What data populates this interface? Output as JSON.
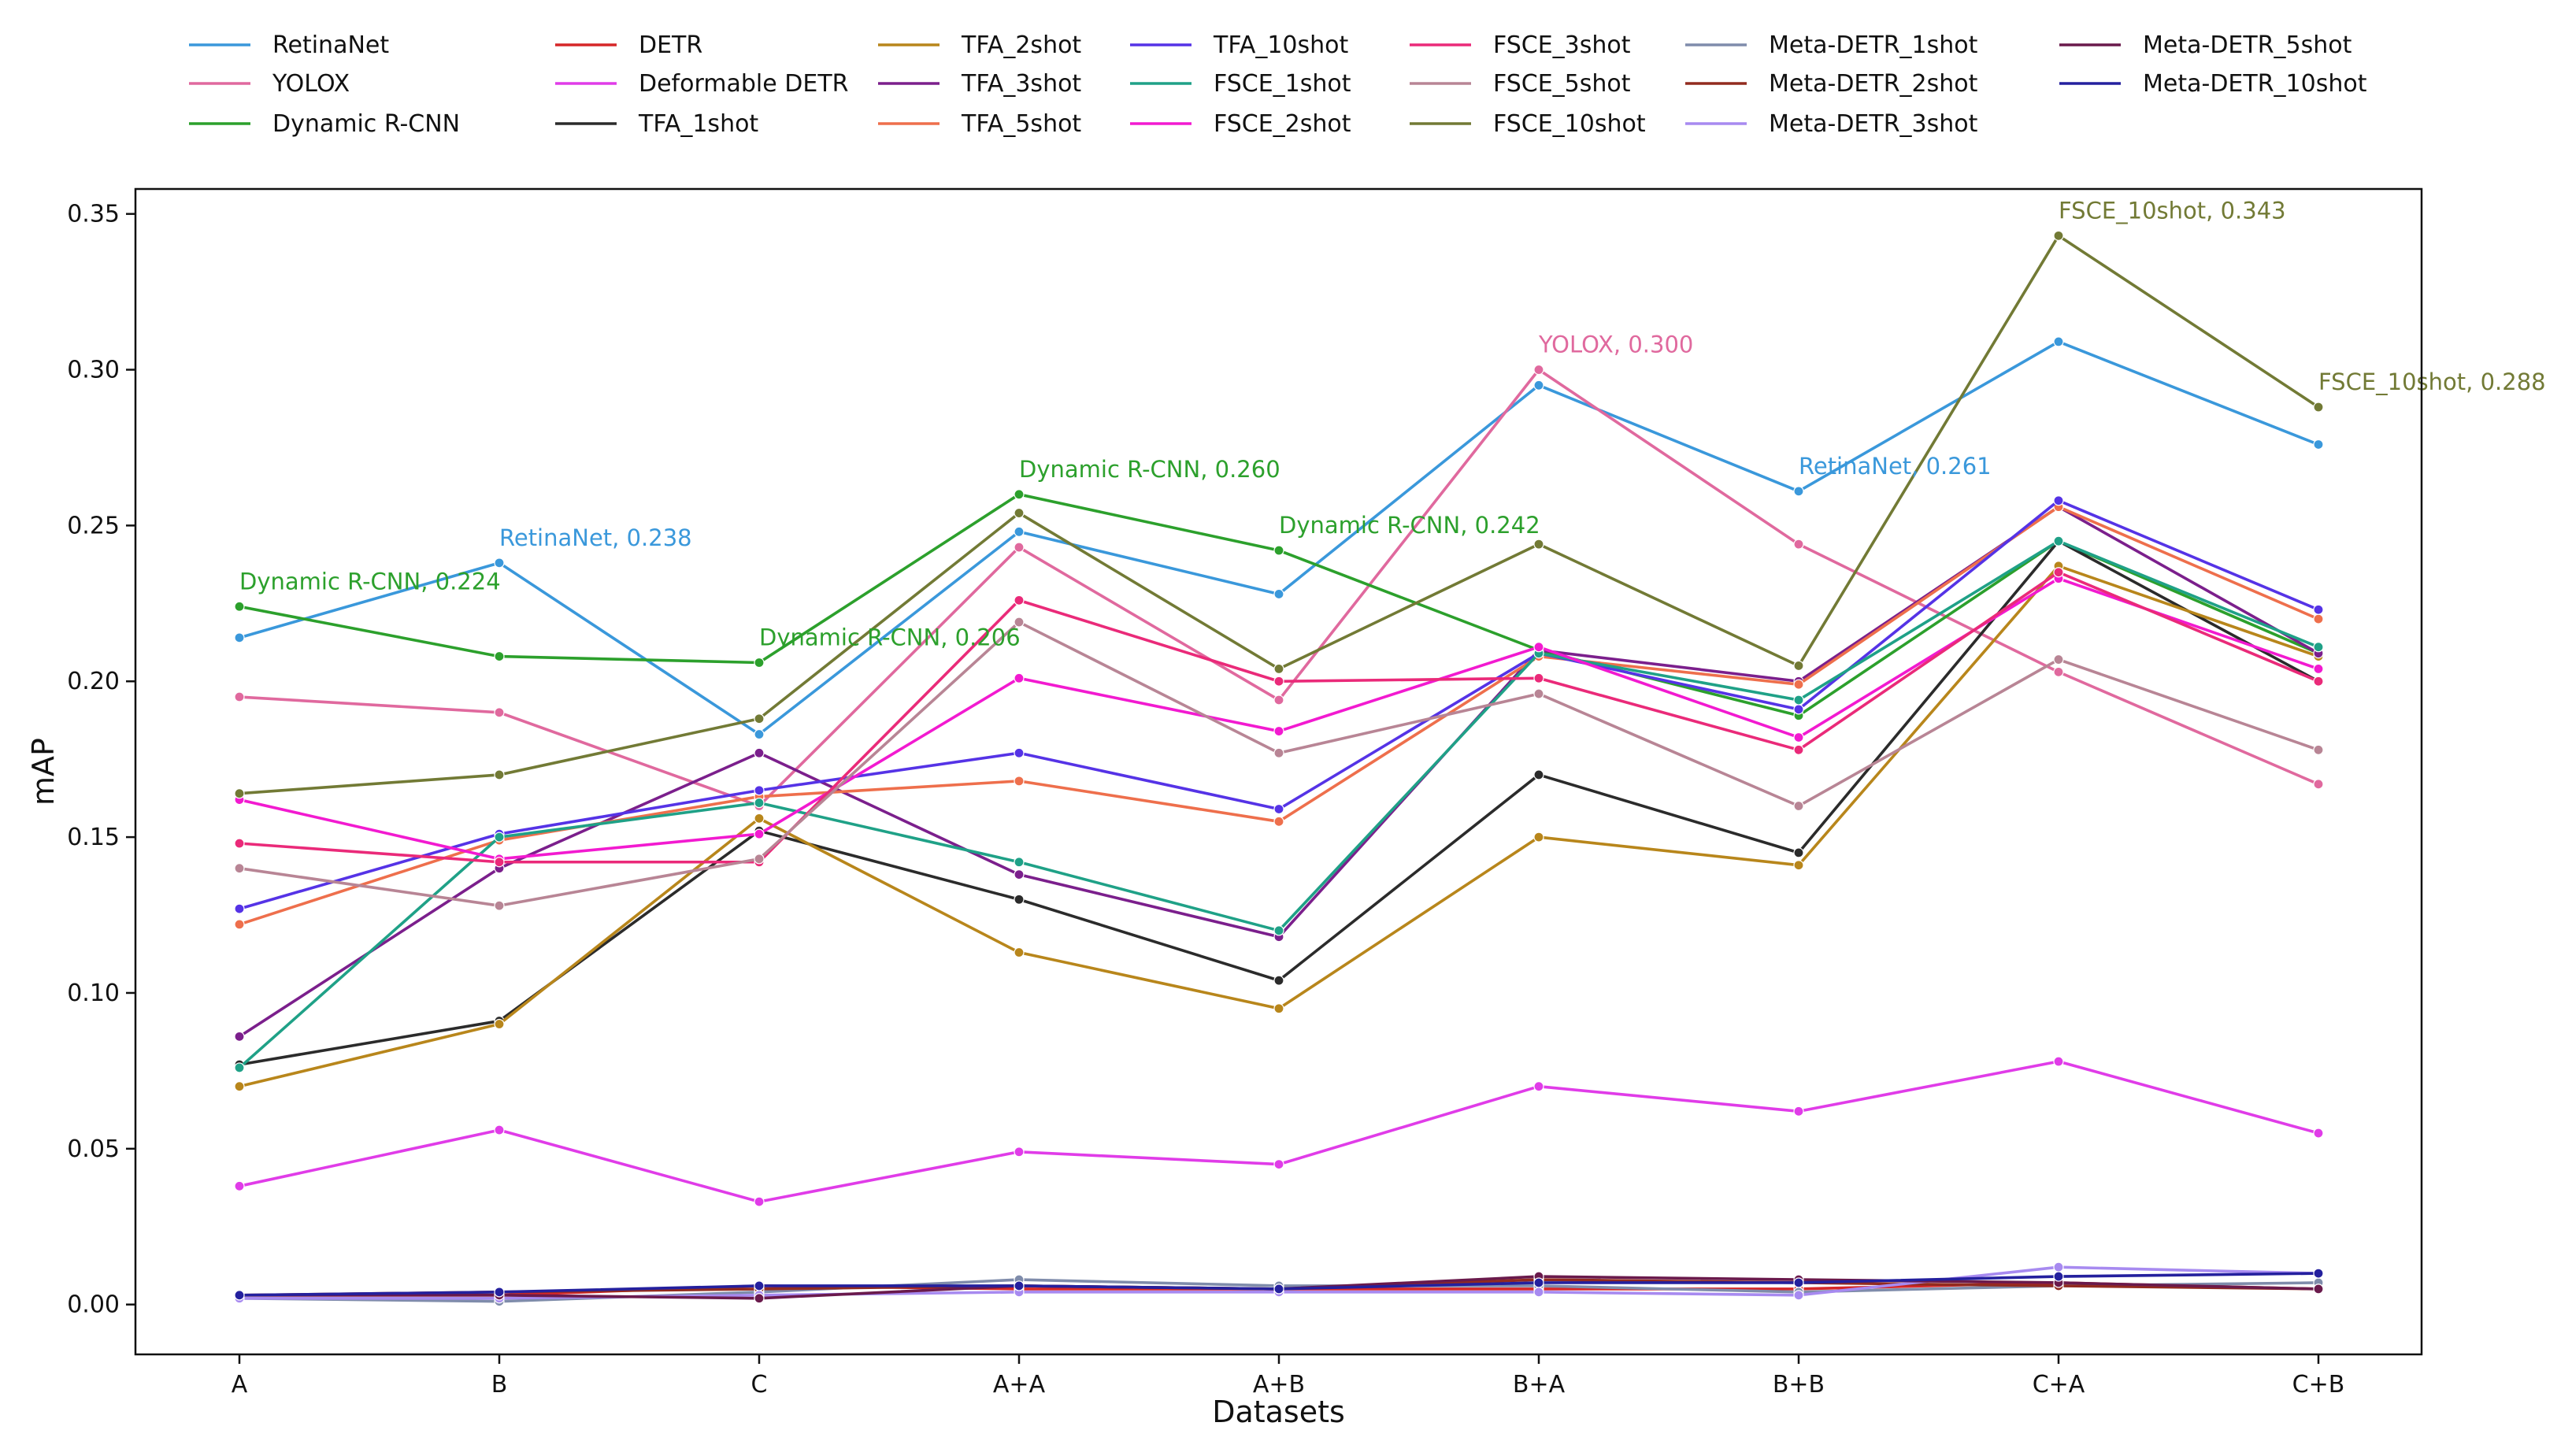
{
  "chart_data": {
    "type": "line",
    "title": "",
    "xlabel": "Datasets",
    "ylabel": "mAP",
    "categories": [
      "A",
      "B",
      "C",
      "A+A",
      "A+B",
      "B+A",
      "B+B",
      "C+A",
      "C+B"
    ],
    "ylim": [
      -0.016,
      0.358
    ],
    "yticks": [
      0.0,
      0.05,
      0.1,
      0.15,
      0.2,
      0.25,
      0.3,
      0.35
    ],
    "ytick_labels": [
      "0.00",
      "0.05",
      "0.10",
      "0.15",
      "0.20",
      "0.25",
      "0.30",
      "0.35"
    ],
    "grid": false,
    "legend_position": "top, above plot, 7 columns",
    "series": [
      {
        "name": "RetinaNet",
        "color": "#3a98db",
        "values": [
          0.214,
          0.238,
          0.183,
          0.248,
          0.228,
          0.295,
          0.261,
          0.309,
          0.276
        ]
      },
      {
        "name": "YOLOX",
        "color": "#e0699e",
        "values": [
          0.195,
          0.19,
          0.16,
          0.243,
          0.194,
          0.3,
          0.244,
          0.203,
          0.167
        ]
      },
      {
        "name": "Dynamic R-CNN",
        "color": "#2ca02c",
        "values": [
          0.224,
          0.208,
          0.206,
          0.26,
          0.242,
          0.21,
          0.189,
          0.245,
          0.209
        ]
      },
      {
        "name": "DETR",
        "color": "#d62728",
        "values": [
          0.003,
          0.003,
          0.006,
          0.005,
          0.005,
          0.005,
          0.005,
          0.007,
          0.005
        ]
      },
      {
        "name": "Deformable DETR",
        "color": "#e03ce8",
        "values": [
          0.038,
          0.056,
          0.033,
          0.049,
          0.045,
          0.07,
          0.062,
          0.078,
          0.055
        ]
      },
      {
        "name": "TFA_1shot",
        "color": "#2b2b2b",
        "values": [
          0.077,
          0.091,
          0.152,
          0.13,
          0.104,
          0.17,
          0.145,
          0.245,
          0.2
        ]
      },
      {
        "name": "TFA_2shot",
        "color": "#b8861b",
        "values": [
          0.07,
          0.09,
          0.156,
          0.113,
          0.095,
          0.15,
          0.141,
          0.237,
          0.208
        ]
      },
      {
        "name": "TFA_3shot",
        "color": "#7b1f8c",
        "values": [
          0.086,
          0.14,
          0.177,
          0.138,
          0.118,
          0.21,
          0.2,
          0.256,
          0.209
        ]
      },
      {
        "name": "TFA_5shot",
        "color": "#ee6f4c",
        "values": [
          0.122,
          0.149,
          0.163,
          0.168,
          0.155,
          0.208,
          0.199,
          0.256,
          0.22
        ]
      },
      {
        "name": "TFA_10shot",
        "color": "#5533e6",
        "values": [
          0.127,
          0.151,
          0.165,
          0.177,
          0.159,
          0.209,
          0.191,
          0.258,
          0.223
        ]
      },
      {
        "name": "FSCE_1shot",
        "color": "#1fa187",
        "values": [
          0.076,
          0.15,
          0.161,
          0.142,
          0.12,
          0.209,
          0.194,
          0.245,
          0.211
        ]
      },
      {
        "name": "FSCE_2shot",
        "color": "#f21ad0",
        "values": [
          0.162,
          0.143,
          0.151,
          0.201,
          0.184,
          0.211,
          0.182,
          0.233,
          0.204
        ]
      },
      {
        "name": "FSCE_3shot",
        "color": "#ea2a79",
        "values": [
          0.148,
          0.142,
          0.142,
          0.226,
          0.2,
          0.201,
          0.178,
          0.235,
          0.2
        ]
      },
      {
        "name": "FSCE_5shot",
        "color": "#b88595",
        "values": [
          0.14,
          0.128,
          0.143,
          0.219,
          0.177,
          0.196,
          0.16,
          0.207,
          0.178
        ]
      },
      {
        "name": "FSCE_10shot",
        "color": "#727a35",
        "values": [
          0.164,
          0.17,
          0.188,
          0.254,
          0.204,
          0.244,
          0.205,
          0.343,
          0.288
        ]
      },
      {
        "name": "Meta-DETR_1shot",
        "color": "#7f8cab",
        "values": [
          0.002,
          0.001,
          0.004,
          0.008,
          0.006,
          0.006,
          0.004,
          0.006,
          0.007
        ]
      },
      {
        "name": "Meta-DETR_2shot",
        "color": "#922b1f",
        "values": [
          0.003,
          0.004,
          0.005,
          0.006,
          0.005,
          0.008,
          0.007,
          0.006,
          0.005
        ]
      },
      {
        "name": "Meta-DETR_3shot",
        "color": "#a78af0",
        "values": [
          0.002,
          0.002,
          0.003,
          0.004,
          0.004,
          0.004,
          0.003,
          0.012,
          0.01
        ]
      },
      {
        "name": "Meta-DETR_5shot",
        "color": "#6a1a4c",
        "values": [
          0.003,
          0.003,
          0.002,
          0.006,
          0.005,
          0.009,
          0.008,
          0.007,
          0.005
        ]
      },
      {
        "name": "Meta-DETR_10shot",
        "color": "#24209e",
        "values": [
          0.003,
          0.004,
          0.006,
          0.006,
          0.005,
          0.007,
          0.007,
          0.009,
          0.01
        ]
      }
    ],
    "annotations": [
      {
        "text": "Dynamic R-CNN, 0.224",
        "series": "Dynamic R-CNN",
        "category": "A",
        "value": 0.224,
        "color": "#2ca02c"
      },
      {
        "text": "RetinaNet, 0.238",
        "series": "RetinaNet",
        "category": "B",
        "value": 0.238,
        "color": "#3a98db"
      },
      {
        "text": "Dynamic R-CNN, 0.206",
        "series": "Dynamic R-CNN",
        "category": "C",
        "value": 0.206,
        "color": "#2ca02c"
      },
      {
        "text": "Dynamic R-CNN, 0.260",
        "series": "Dynamic R-CNN",
        "category": "A+A",
        "value": 0.26,
        "color": "#2ca02c"
      },
      {
        "text": "Dynamic R-CNN, 0.242",
        "series": "Dynamic R-CNN",
        "category": "A+B",
        "value": 0.242,
        "color": "#2ca02c"
      },
      {
        "text": "YOLOX, 0.300",
        "series": "YOLOX",
        "category": "B+A",
        "value": 0.3,
        "color": "#e0699e"
      },
      {
        "text": "RetinaNet, 0.261",
        "series": "RetinaNet",
        "category": "B+B",
        "value": 0.261,
        "color": "#3a98db"
      },
      {
        "text": "FSCE_10shot, 0.343",
        "series": "FSCE_10shot",
        "category": "C+A",
        "value": 0.343,
        "color": "#727a35"
      },
      {
        "text": "FSCE_10shot, 0.288",
        "series": "FSCE_10shot",
        "category": "C+B",
        "value": 0.288,
        "color": "#727a35"
      }
    ]
  }
}
